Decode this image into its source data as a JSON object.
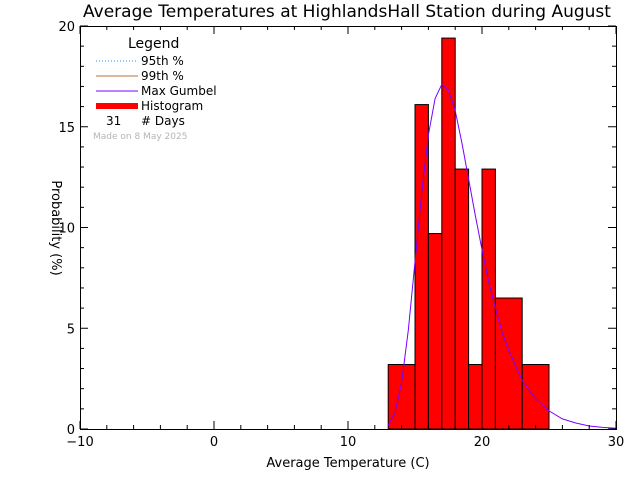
{
  "chart_data": {
    "type": "bar",
    "title": "Average Temperatures at HighlandsHall Station during August",
    "xlabel": "Average Temperature (C)",
    "ylabel": "Probability  (%)",
    "xlim": [
      -10,
      30
    ],
    "ylim": [
      0,
      20
    ],
    "xticks": [
      "−10",
      "0",
      "10",
      "20",
      "30"
    ],
    "yticks": [
      "0",
      "5",
      "10",
      "15",
      "20"
    ],
    "grid": false,
    "legend_position": "top-left",
    "legend": {
      "title": "Legend",
      "entries": [
        {
          "label": "95th %",
          "color": "#1e90ff",
          "style": "dotted"
        },
        {
          "label": "99th %",
          "color": "#b8733c",
          "style": "solid"
        },
        {
          "label": "Max Gumbel",
          "color": "#7a00ff",
          "style": "solid"
        },
        {
          "label": "Histogram",
          "color": "#ff0000",
          "style": "thick"
        }
      ],
      "days_count": "31",
      "days_label": "# Days"
    },
    "credit": "Made on 8 May 2025",
    "histogram": {
      "color": "#ff0000",
      "bins": [
        {
          "x0": 13,
          "x1": 15,
          "value": 3.2
        },
        {
          "x0": 15,
          "x1": 16,
          "value": 16.1
        },
        {
          "x0": 16,
          "x1": 17,
          "value": 9.7
        },
        {
          "x0": 17,
          "x1": 18,
          "value": 19.4
        },
        {
          "x0": 18,
          "x1": 19,
          "value": 12.9
        },
        {
          "x0": 19,
          "x1": 20,
          "value": 3.2
        },
        {
          "x0": 20,
          "x1": 21,
          "value": 12.9
        },
        {
          "x0": 21,
          "x1": 23,
          "value": 6.5
        },
        {
          "x0": 23,
          "x1": 25,
          "value": 3.2
        }
      ]
    },
    "gumbel_curve": {
      "name": "Max Gumbel",
      "color": "#7a00ff",
      "x": [
        13,
        13.5,
        14,
        14.5,
        15,
        15.5,
        16,
        16.5,
        17,
        17.5,
        18,
        18.5,
        19,
        19.5,
        20,
        20.5,
        21,
        21.5,
        22,
        23,
        24,
        25,
        26,
        27,
        28,
        29,
        30
      ],
      "y": [
        0.2,
        0.8,
        2.3,
        4.9,
        8.3,
        11.7,
        14.6,
        16.4,
        17.1,
        16.8,
        15.8,
        14.2,
        12.4,
        10.6,
        8.9,
        7.3,
        6.0,
        4.8,
        3.9,
        2.4,
        1.5,
        0.9,
        0.5,
        0.3,
        0.15,
        0.08,
        0.04
      ]
    }
  }
}
